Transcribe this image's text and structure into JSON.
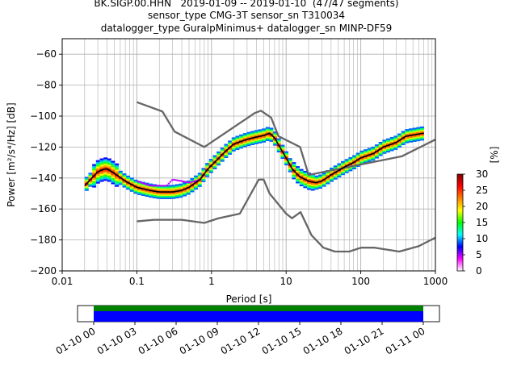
{
  "header": {
    "title_line_1": "BK.SIGP.00.HHN   2019-01-09 -- 2019-01-10  (47/47 segments)",
    "title_line_2": "sensor_type CMG-3T sensor_sn T310034",
    "title_line_3": "datalogger_type GuralpMinimus+ datalogger_sn MINP-DF59"
  },
  "chart_data": [
    {
      "type": "heatmap",
      "xlabel": "Period [s]",
      "ylabel": "Power [m²/s⁴/Hz] [dB]",
      "x_scale": "log",
      "xlim": [
        0.01,
        1000
      ],
      "ylim": [
        -200,
        -50
      ],
      "x_ticks": [
        0.01,
        0.1,
        1,
        10,
        100,
        1000
      ],
      "x_tick_labels": [
        "0.01",
        "0.1",
        "1",
        "10",
        "100",
        "1000"
      ],
      "y_ticks": [
        -200,
        -180,
        -160,
        -140,
        -120,
        -100,
        -80,
        -60
      ],
      "y_tick_labels": [
        "−200",
        "−180",
        "−160",
        "−140",
        "−120",
        "−100",
        "−80",
        "−60"
      ],
      "grid": true,
      "colorbar": {
        "label": "[%]",
        "range": [
          0,
          30
        ],
        "ticks": [
          0,
          5,
          10,
          15,
          20,
          25,
          30
        ],
        "colormap": [
          "#ffffff",
          "#ff00ff",
          "#0000ff",
          "#00ffff",
          "#00ff00",
          "#ffff00",
          "#ff7f00",
          "#ff0000",
          "#800000"
        ]
      },
      "series": [
        {
          "name": "",
          "role": "new high noise model",
          "color": "#666666",
          "points": [
            [
              0.1,
              -91
            ],
            [
              0.22,
              -97
            ],
            [
              0.32,
              -110
            ],
            [
              0.8,
              -120
            ],
            [
              3.8,
              -98
            ],
            [
              4.6,
              -96.5
            ],
            [
              6.3,
              -101
            ],
            [
              7.9,
              -113
            ],
            [
              15.4,
              -120
            ],
            [
              20,
              -138
            ],
            [
              354,
              -126
            ],
            [
              10000,
              -91
            ]
          ]
        },
        {
          "name": "",
          "role": "new low noise model",
          "color": "#666666",
          "points": [
            [
              0.1,
              -168
            ],
            [
              0.17,
              -167
            ],
            [
              0.4,
              -167
            ],
            [
              0.8,
              -169
            ],
            [
              1.24,
              -166
            ],
            [
              2.4,
              -163
            ],
            [
              4.3,
              -141
            ],
            [
              5,
              -141
            ],
            [
              6,
              -150
            ],
            [
              10,
              -163
            ],
            [
              12,
              -166
            ],
            [
              15.6,
              -162
            ],
            [
              21.9,
              -177
            ],
            [
              31.6,
              -185
            ],
            [
              45,
              -187.5
            ],
            [
              70,
              -187.5
            ],
            [
              101,
              -185
            ],
            [
              154,
              -185
            ],
            [
              328,
              -187.5
            ],
            [
              600,
              -184
            ],
            [
              1000,
              -178.5
            ]
          ]
        },
        {
          "name": "",
          "role": "mode",
          "color": "#000000",
          "points": [
            [
              0.02,
              -145
            ],
            [
              0.025,
              -140
            ],
            [
              0.03,
              -136
            ],
            [
              0.035,
              -134.5
            ],
            [
              0.04,
              -134
            ],
            [
              0.05,
              -137
            ],
            [
              0.07,
              -142
            ],
            [
              0.1,
              -146
            ],
            [
              0.15,
              -148
            ],
            [
              0.2,
              -149
            ],
            [
              0.3,
              -149
            ],
            [
              0.4,
              -148
            ],
            [
              0.5,
              -146
            ],
            [
              0.7,
              -141
            ],
            [
              0.9,
              -134
            ],
            [
              1.2,
              -128
            ],
            [
              1.6,
              -122
            ],
            [
              2,
              -118
            ],
            [
              3,
              -115
            ],
            [
              4,
              -113.5
            ],
            [
              5,
              -112.5
            ],
            [
              6,
              -111
            ],
            [
              7,
              -114
            ],
            [
              8,
              -119
            ],
            [
              10,
              -127
            ],
            [
              12,
              -134
            ],
            [
              15,
              -139
            ],
            [
              20,
              -142
            ],
            [
              25,
              -143
            ],
            [
              30,
              -142
            ],
            [
              40,
              -138
            ],
            [
              60,
              -133
            ],
            [
              80,
              -130
            ],
            [
              100,
              -127
            ],
            [
              150,
              -124
            ],
            [
              200,
              -120
            ],
            [
              300,
              -117
            ],
            [
              400,
              -113
            ],
            [
              700,
              -111
            ]
          ]
        },
        {
          "name": "",
          "role": "outlier traces",
          "color": "#bb00ff",
          "points": [
            [
              0.1,
              -142
            ],
            [
              0.15,
              -145
            ],
            [
              0.2,
              -145
            ],
            [
              0.25,
              -145
            ],
            [
              0.3,
              -141
            ],
            [
              0.35,
              -141.5
            ],
            [
              0.4,
              -142
            ],
            [
              0.5,
              -143
            ],
            [
              0.6,
              -142
            ],
            [
              0.7,
              -141
            ],
            [
              0.75,
              -139
            ]
          ]
        }
      ]
    },
    {
      "type": "timeline",
      "x_tick_labels": [
        "01-10 00",
        "01-10 03",
        "01-10 06",
        "01-10 09",
        "01-10 12",
        "01-10 15",
        "01-10 18",
        "01-10 21",
        "01-11 00"
      ],
      "bars": [
        {
          "role": "data coverage",
          "color": "#008000",
          "start": "01-10 00",
          "end": "01-11 00"
        },
        {
          "role": "processed segments",
          "color": "#0000ff",
          "start": "01-10 00",
          "end": "01-11 00"
        }
      ]
    }
  ]
}
